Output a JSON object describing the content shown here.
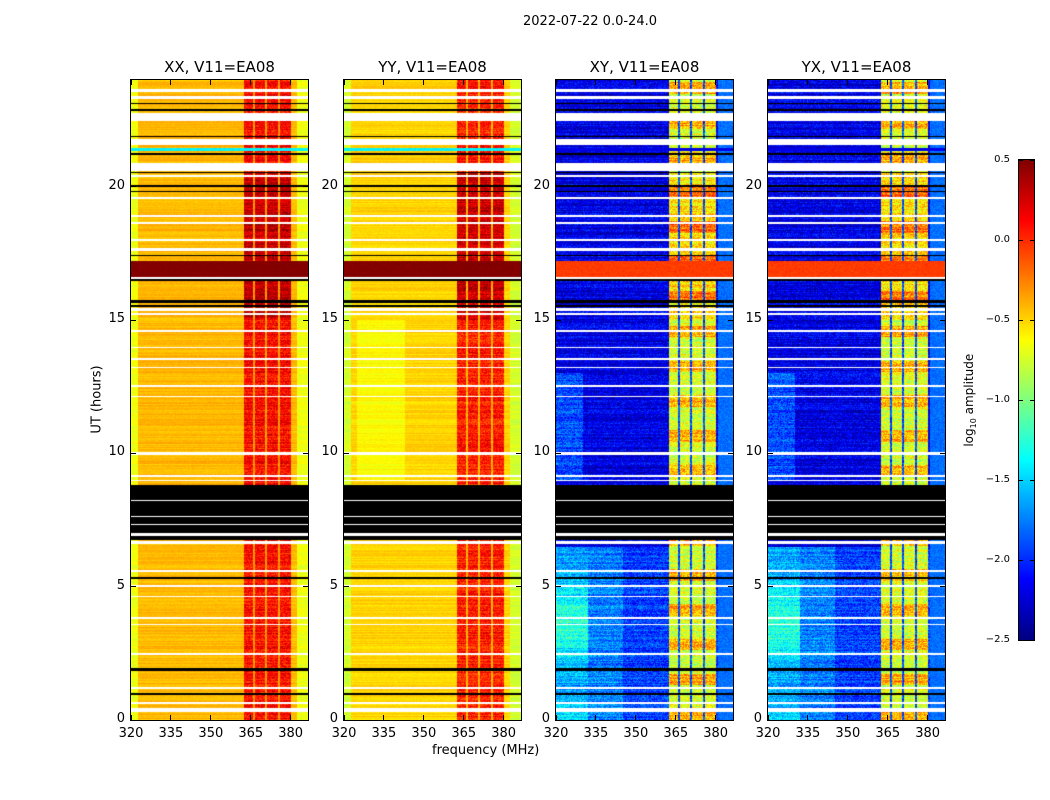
{
  "chart_data": {
    "type": "heatmap",
    "title": "2022-07-22 0.0-24.0",
    "xlabel": "frequency (MHz)",
    "ylabel": "UT (hours)",
    "xlim": [
      320,
      386.5
    ],
    "ylim": [
      0,
      24
    ],
    "xticks": [
      320,
      335,
      350,
      365,
      380
    ],
    "yticks": [
      0,
      5,
      10,
      15,
      20
    ],
    "colormap": "jet",
    "colorbar": {
      "label_prefix": "log",
      "label_sub": "10",
      "label_suffix": " amplitude",
      "range": [
        -2.5,
        0.5
      ],
      "ticks": [
        "0.5",
        "0.0",
        "−0.5",
        "−1.0",
        "−1.5",
        "−2.0",
        "−2.5"
      ],
      "tick_values": [
        0.5,
        0.0,
        -0.5,
        -1.0,
        -1.5,
        -2.0,
        -2.5
      ]
    },
    "panels": [
      {
        "title": "XX, V11=EA08",
        "kind": "parallel",
        "base": -0.42,
        "rfi": 0.1,
        "rfi_night": 0.3,
        "bright": 0.5,
        "cyan_line": -1.4
      },
      {
        "title": "YY, V11=EA08",
        "kind": "parallel",
        "base": -0.5,
        "rfi": 0.05,
        "rfi_night": 0.28,
        "bright": 0.5,
        "cyan_line": -1.4
      },
      {
        "title": "XY, V11=EA08",
        "kind": "cross",
        "base": -2.2,
        "rfi": -0.75,
        "rfi_night": -0.55,
        "bright": -0.05,
        "cyan_line": -2.2
      },
      {
        "title": "YX, V11=EA08",
        "kind": "cross",
        "base": -2.2,
        "rfi": -0.75,
        "rfi_night": -0.55,
        "bright": -0.05,
        "cyan_line": -2.2
      }
    ],
    "rfi_subbands_mhz": [
      [
        362.5,
        366
      ],
      [
        366.6,
        370.5
      ],
      [
        371.1,
        375.2
      ],
      [
        376,
        380.2
      ]
    ],
    "flagged_white_hours": [
      [
        23.55,
        23.65
      ],
      [
        23.3,
        23.4
      ],
      [
        22.45,
        22.75
      ],
      [
        21.55,
        21.8
      ],
      [
        20.6,
        20.9
      ],
      [
        20.35,
        20.42
      ],
      [
        19.55,
        19.62
      ],
      [
        18.85,
        18.95
      ],
      [
        18.6,
        18.68
      ],
      [
        17.95,
        18.05
      ],
      [
        17.6,
        17.7
      ],
      [
        16.55,
        16.62
      ],
      [
        15.35,
        15.45
      ],
      [
        15.2,
        15.27
      ],
      [
        14.55,
        14.62
      ],
      [
        13.95,
        14.0
      ],
      [
        13.5,
        13.58
      ],
      [
        13.2,
        13.25
      ],
      [
        12.5,
        12.58
      ],
      [
        12.1,
        12.15
      ],
      [
        9.95,
        10.05
      ],
      [
        9.1,
        9.2
      ],
      [
        8.95,
        9.0
      ],
      [
        8.2,
        8.25
      ],
      [
        7.6,
        7.66
      ],
      [
        7.3,
        7.35
      ],
      [
        6.9,
        7.0
      ],
      [
        6.6,
        6.7
      ],
      [
        5.55,
        5.62
      ],
      [
        5.0,
        5.07
      ],
      [
        4.6,
        4.66
      ],
      [
        3.8,
        3.86
      ],
      [
        3.55,
        3.6
      ],
      [
        2.45,
        2.52
      ],
      [
        1.15,
        1.22
      ],
      [
        0.6,
        0.68
      ],
      [
        0.3,
        0.45
      ]
    ],
    "flagged_black_hours": [
      [
        23.1,
        23.15
      ],
      [
        22.85,
        22.9
      ],
      [
        21.85,
        21.9
      ],
      [
        21.2,
        21.25
      ],
      [
        20.5,
        20.55
      ],
      [
        20.0,
        20.05
      ],
      [
        19.8,
        19.85
      ],
      [
        17.4,
        17.45
      ],
      [
        16.48,
        16.52
      ],
      [
        15.65,
        15.75
      ],
      [
        15.5,
        15.55
      ],
      [
        6.75,
        8.8
      ],
      [
        5.3,
        5.35
      ],
      [
        1.85,
        1.95
      ],
      [
        0.95,
        1.0
      ]
    ],
    "bright_hours": [
      16.62,
      17.2
    ],
    "cyan_line_hours": [
      21.35,
      21.45
    ]
  }
}
